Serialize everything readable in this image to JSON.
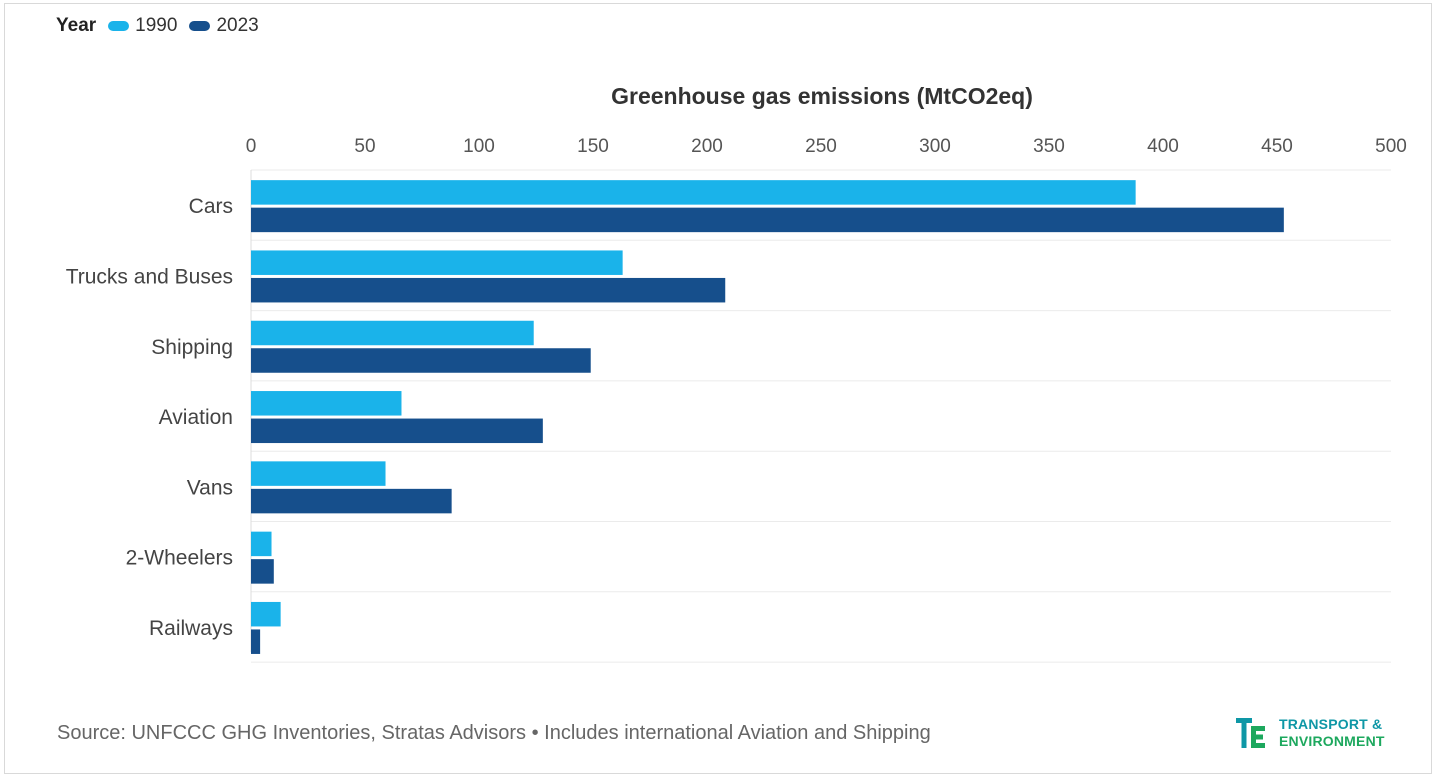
{
  "legend": {
    "title": "Year",
    "items": [
      {
        "label": "1990",
        "color": "#1ab3ea"
      },
      {
        "label": "2023",
        "color": "#164f8c"
      }
    ]
  },
  "chart_data": {
    "type": "bar",
    "orientation": "horizontal",
    "title": "Greenhouse gas emissions (MtCO2eq)",
    "xlabel": "",
    "ylabel": "",
    "xlim": [
      0,
      500
    ],
    "ticks": [
      0,
      50,
      100,
      150,
      200,
      250,
      300,
      350,
      400,
      450,
      500
    ],
    "categories": [
      "Cars",
      "Trucks and Buses",
      "Shipping",
      "Aviation",
      "Vans",
      "2-Wheelers",
      "Railways"
    ],
    "series": [
      {
        "name": "1990",
        "color": "#1ab3ea",
        "values": [
          388,
          163,
          124,
          66,
          59,
          9,
          13
        ]
      },
      {
        "name": "2023",
        "color": "#164f8c",
        "values": [
          453,
          208,
          149,
          128,
          88,
          10,
          4
        ]
      }
    ],
    "grid": true,
    "legend_position": "top-left"
  },
  "footer": {
    "source": "Source: UNFCCC GHG Inventories, Stratas Advisors • Includes international Aviation and Shipping"
  },
  "logo": {
    "line1": "TRANSPORT &",
    "line2": "ENVIRONMENT"
  }
}
